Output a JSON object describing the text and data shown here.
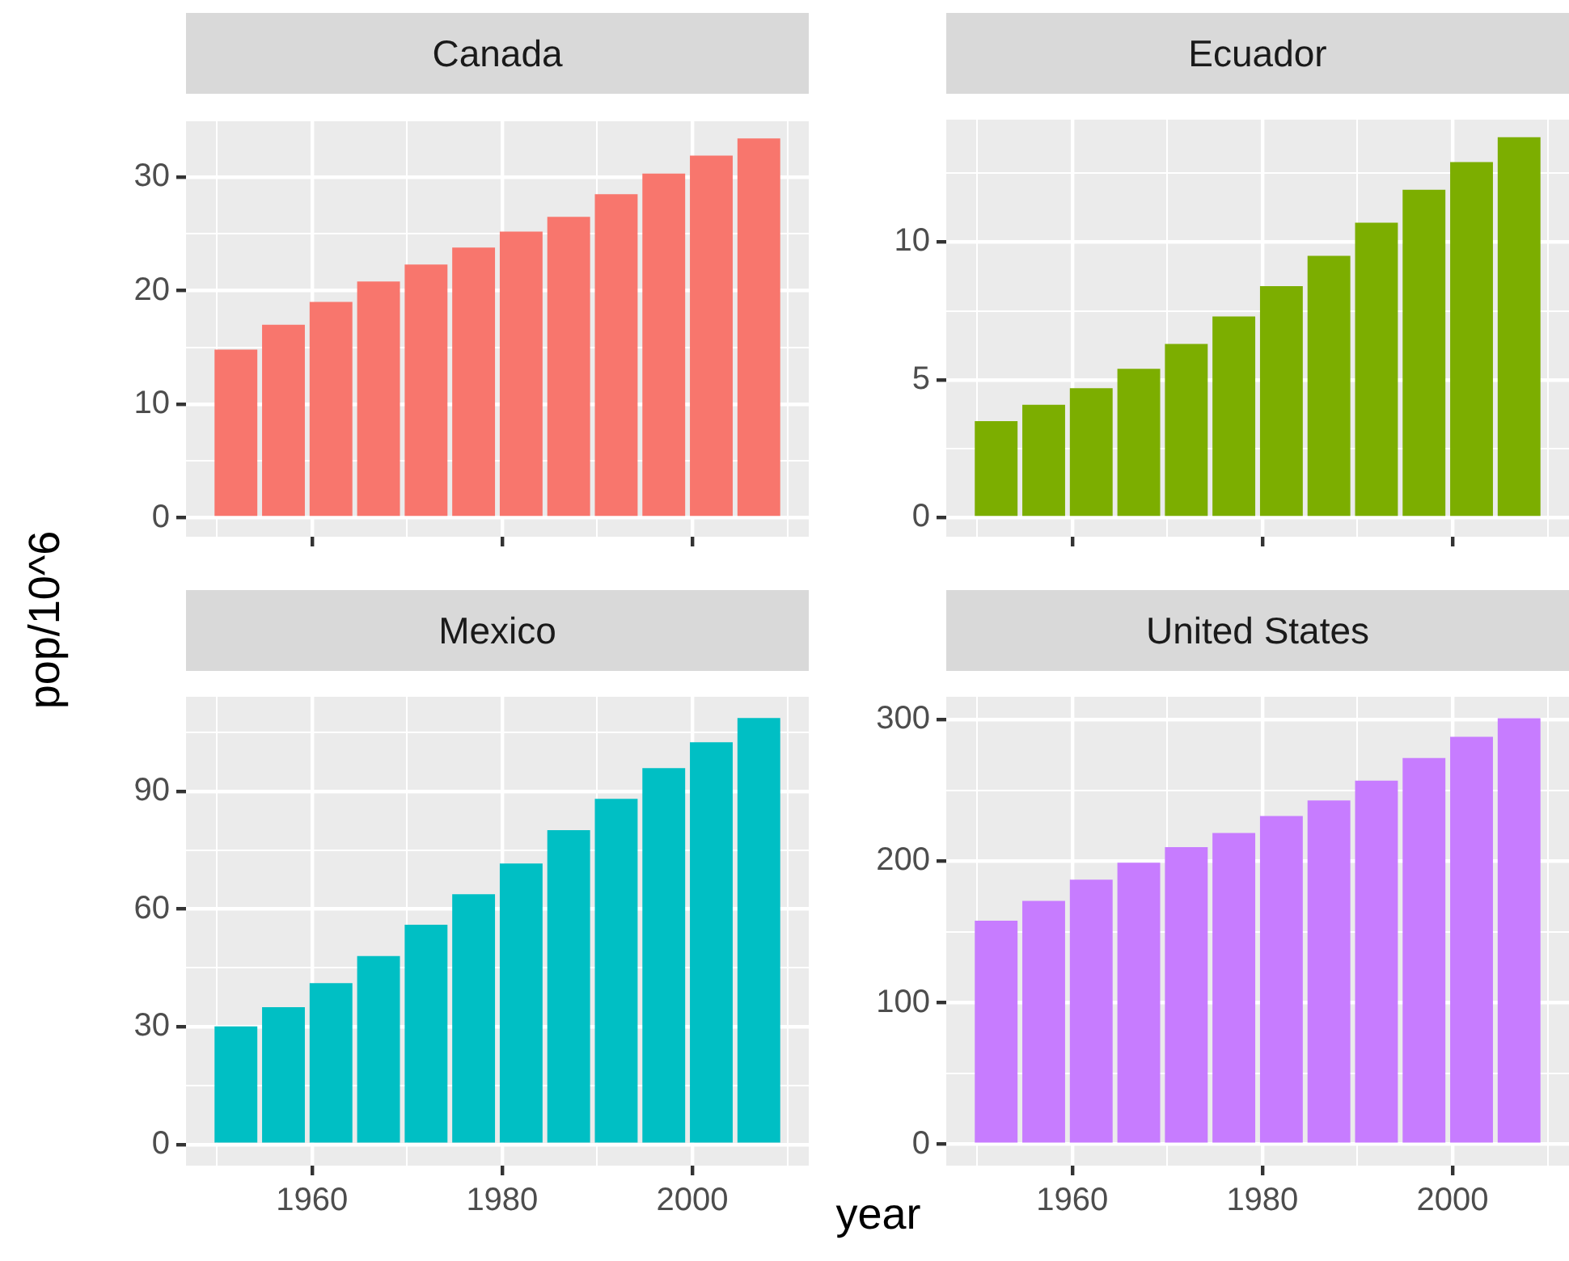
{
  "chart_data": [
    {
      "type": "bar",
      "title": "Canada",
      "ylabel": "pop/10^6",
      "x": [
        1952,
        1957,
        1962,
        1967,
        1972,
        1977,
        1982,
        1987,
        1992,
        1997,
        2002,
        2007
      ],
      "values": [
        14.8,
        17.0,
        19.0,
        20.8,
        22.3,
        23.8,
        25.2,
        26.5,
        28.5,
        30.3,
        31.9,
        33.4
      ],
      "color": "#f8766d",
      "xlim": [
        1946.75,
        2012.25
      ],
      "xticks": [
        {
          "value": 1950,
          "label": null
        },
        1960,
        {
          "value": 1970,
          "label": null
        },
        1980,
        {
          "value": 1990,
          "label": null
        },
        2000,
        {
          "value": 2010,
          "label": null
        }
      ],
      "ylim": [
        -1.67,
        35.06
      ],
      "yticks": [
        0,
        {
          "value": 5,
          "label": null
        },
        10,
        {
          "value": 15,
          "label": null
        },
        20,
        {
          "value": 25,
          "label": null
        },
        30,
        {
          "value": 35,
          "label": null
        }
      ],
      "grid": true,
      "tick_labels": "y"
    },
    {
      "type": "bar",
      "title": "Ecuador",
      "x": [
        1952,
        1957,
        1962,
        1967,
        1972,
        1977,
        1982,
        1987,
        1992,
        1997,
        2002,
        2007
      ],
      "values": [
        3.5,
        4.1,
        4.7,
        5.4,
        6.3,
        7.3,
        8.4,
        9.5,
        10.7,
        11.9,
        12.9,
        13.8
      ],
      "color": "#7cae00",
      "xlim": [
        1946.75,
        2012.25
      ],
      "xticks": [
        {
          "value": 1950,
          "label": null
        },
        1960,
        {
          "value": 1970,
          "label": null
        },
        1980,
        {
          "value": 1990,
          "label": null
        },
        2000,
        {
          "value": 2010,
          "label": null
        }
      ],
      "ylim": [
        -0.69,
        14.44
      ],
      "yticks": [
        0,
        {
          "value": 2.5,
          "label": null
        },
        5,
        {
          "value": 7.5,
          "label": null
        },
        10,
        {
          "value": 12.5,
          "label": null
        }
      ],
      "grid": true,
      "tick_labels": "y"
    },
    {
      "type": "bar",
      "title": "Mexico",
      "xlabel": "year",
      "x": [
        1952,
        1957,
        1962,
        1967,
        1972,
        1977,
        1982,
        1987,
        1992,
        1997,
        2002,
        2007
      ],
      "values": [
        30.1,
        35.0,
        41.1,
        48.0,
        56.0,
        63.8,
        71.6,
        80.1,
        88.1,
        95.9,
        102.5,
        108.7
      ],
      "color": "#00bfc4",
      "xlim": [
        1946.75,
        2012.25
      ],
      "xticks": [
        {
          "value": 1950,
          "label": null
        },
        1960,
        {
          "value": 1970,
          "label": null
        },
        1980,
        {
          "value": 1990,
          "label": null
        },
        2000,
        {
          "value": 2010,
          "label": null
        }
      ],
      "ylim": [
        -5.4,
        114.1
      ],
      "yticks": [
        0,
        {
          "value": 15,
          "label": null
        },
        30,
        {
          "value": 45,
          "label": null
        },
        60,
        {
          "value": 75,
          "label": null
        },
        90,
        {
          "value": 105,
          "label": null
        }
      ],
      "grid": true
    },
    {
      "type": "bar",
      "title": "United States",
      "x": [
        1952,
        1957,
        1962,
        1967,
        1972,
        1977,
        1982,
        1987,
        1992,
        1997,
        2002,
        2007
      ],
      "values": [
        158,
        172,
        187,
        199,
        210,
        220,
        232,
        243,
        257,
        273,
        288,
        301
      ],
      "color": "#c77cff",
      "xlim": [
        1946.75,
        2012.25
      ],
      "xticks": [
        {
          "value": 1950,
          "label": null
        },
        1960,
        {
          "value": 1970,
          "label": null
        },
        1980,
        {
          "value": 1990,
          "label": null
        },
        2000,
        {
          "value": 2010,
          "label": null
        }
      ],
      "ylim": [
        -15.06,
        316.2
      ],
      "yticks": [
        0,
        {
          "value": 50,
          "label": null
        },
        100,
        {
          "value": 150,
          "label": null
        },
        200,
        {
          "value": 250,
          "label": null
        },
        300
      ],
      "grid": true
    }
  ]
}
